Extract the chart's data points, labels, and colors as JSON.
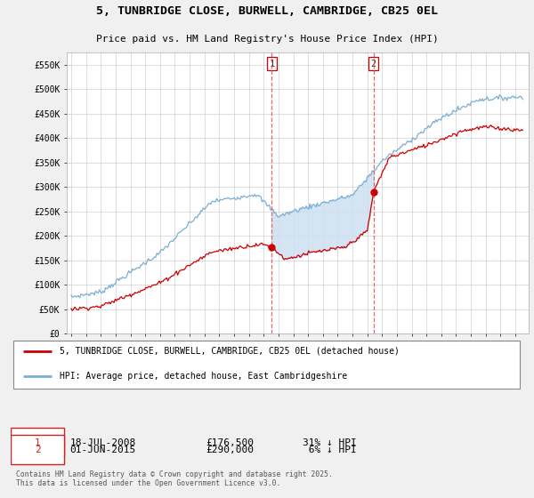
{
  "title": "5, TUNBRIDGE CLOSE, BURWELL, CAMBRIDGE, CB25 0EL",
  "subtitle": "Price paid vs. HM Land Registry's House Price Index (HPI)",
  "legend_label_red": "5, TUNBRIDGE CLOSE, BURWELL, CAMBRIDGE, CB25 0EL (detached house)",
  "legend_label_blue": "HPI: Average price, detached house, East Cambridgeshire",
  "footer": "Contains HM Land Registry data © Crown copyright and database right 2025.\nThis data is licensed under the Open Government Licence v3.0.",
  "ylim": [
    0,
    575000
  ],
  "yticks": [
    0,
    50000,
    100000,
    150000,
    200000,
    250000,
    300000,
    350000,
    400000,
    450000,
    500000,
    550000
  ],
  "red_color": "#cc0000",
  "blue_color": "#7aafd4",
  "shade_color": "#cde0f0",
  "vline1_x": 2008.55,
  "vline2_x": 2015.42,
  "point1_x": 2008.55,
  "point1_y": 176500,
  "point2_x": 2015.42,
  "point2_y": 290000,
  "xmin": 1994.7,
  "xmax": 2025.9,
  "background_color": "#f0f0f0",
  "plot_background": "#ffffff"
}
